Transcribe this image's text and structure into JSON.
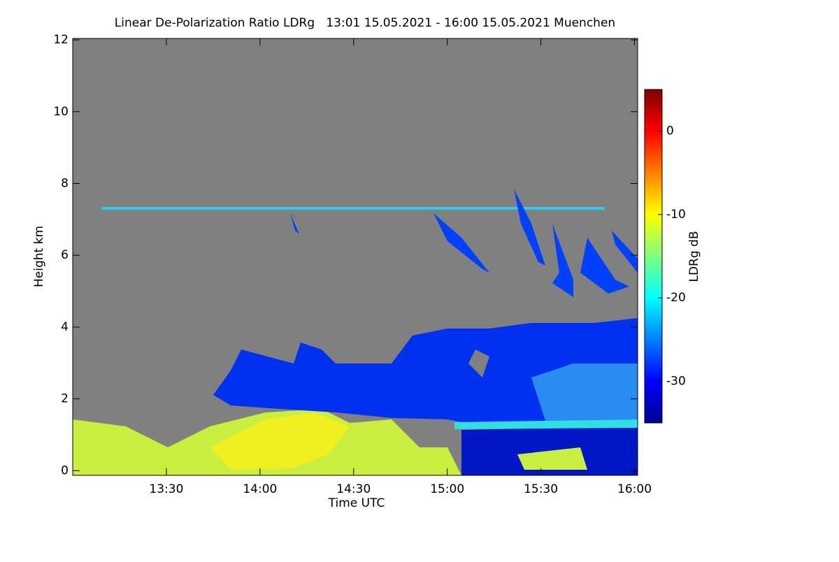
{
  "chart_data": {
    "type": "heatmap",
    "title": "Linear De-Polarization Ratio LDRg   13:01 15.05.2021 - 16:00 15.05.2021 Muenchen",
    "x_label": "Time UTC",
    "y_label": "Height km",
    "colorbar_label": "LDRg dB",
    "xlim": [
      780,
      961
    ],
    "xticks": [
      {
        "value": 810,
        "label": "13:30"
      },
      {
        "value": 840,
        "label": "14:00"
      },
      {
        "value": 870,
        "label": "14:30"
      },
      {
        "value": 900,
        "label": "15:00"
      },
      {
        "value": 930,
        "label": "15:30"
      },
      {
        "value": 960,
        "label": "16:00"
      }
    ],
    "ylim": [
      -0.13,
      12.04
    ],
    "yticks": [
      0,
      2,
      4,
      6,
      8,
      10,
      12
    ],
    "clim": [
      -35,
      5
    ],
    "cticks": [
      -30,
      -20,
      -10,
      0
    ],
    "colormap": [
      "#00008f",
      "#0000ff",
      "#0080ff",
      "#00ffff",
      "#80ff80",
      "#ffff00",
      "#ff8000",
      "#ff0000",
      "#800000"
    ],
    "background": "#808080"
  }
}
